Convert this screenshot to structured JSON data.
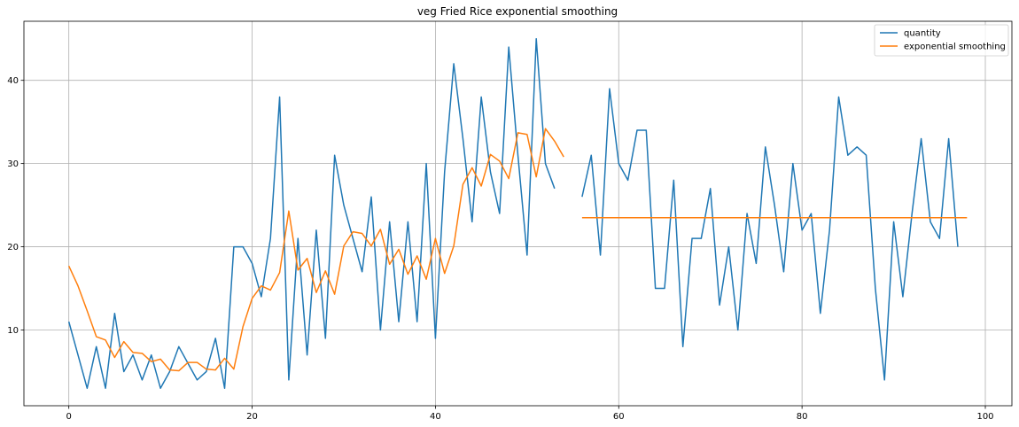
{
  "chart_data": {
    "type": "line",
    "title": "veg Fried Rice exponential smoothing",
    "xlabel": "",
    "ylabel": "",
    "xlim": [
      -4.9,
      102.9
    ],
    "ylim": [
      0.9,
      47.1
    ],
    "x_ticks": [
      0,
      20,
      40,
      60,
      80,
      100
    ],
    "y_ticks": [
      10,
      20,
      30,
      40
    ],
    "grid": true,
    "legend_position": "top-right",
    "series": [
      {
        "name": "quantity",
        "color": "#1f77b4",
        "x": [
          0,
          1,
          2,
          3,
          4,
          5,
          6,
          7,
          8,
          9,
          10,
          11,
          12,
          13,
          14,
          15,
          16,
          17,
          18,
          19,
          20,
          21,
          22,
          23,
          24,
          25,
          26,
          27,
          28,
          29,
          30,
          31,
          32,
          33,
          34,
          35,
          36,
          37,
          38,
          39,
          40,
          41,
          42,
          43,
          44,
          45,
          46,
          47,
          48,
          49,
          50,
          51,
          52,
          53,
          54,
          55,
          56,
          57,
          58,
          59,
          60,
          61,
          62,
          63,
          64,
          65,
          66,
          67,
          68,
          69,
          70,
          71,
          72,
          73,
          74,
          75,
          76,
          77,
          78,
          79,
          80,
          81,
          82,
          83,
          84,
          85,
          86,
          87,
          88,
          89,
          90,
          91,
          92,
          93,
          94,
          95,
          96,
          97
        ],
        "y": [
          11,
          7,
          3,
          8,
          3,
          12,
          5,
          7,
          4,
          7,
          3,
          5,
          8,
          6,
          4,
          5,
          9,
          3,
          20,
          20,
          18,
          14,
          21,
          38,
          4,
          21,
          7,
          22,
          9,
          31,
          25,
          21,
          17,
          26,
          10,
          23,
          11,
          23,
          11,
          30,
          9,
          29,
          42,
          33,
          23,
          38,
          29,
          24,
          44,
          31,
          19,
          45,
          30,
          27,
          null,
          null,
          26,
          31,
          19,
          39,
          30,
          28,
          34,
          34,
          15,
          15,
          28,
          8,
          21,
          21,
          27,
          13,
          20,
          10,
          24,
          18,
          32,
          25,
          17,
          30,
          22,
          24,
          12,
          22,
          38,
          31,
          32,
          31,
          15,
          4,
          23,
          14,
          24,
          33,
          23,
          21,
          33,
          20
        ]
      },
      {
        "name": "exponential smoothing",
        "color": "#ff7f0e",
        "x": [
          0,
          1,
          2,
          3,
          4,
          5,
          6,
          7,
          8,
          9,
          10,
          11,
          12,
          13,
          14,
          15,
          16,
          17,
          18,
          19,
          20,
          21,
          22,
          23,
          24,
          25,
          26,
          27,
          28,
          29,
          30,
          31,
          32,
          33,
          34,
          35,
          36,
          37,
          38,
          39,
          40,
          41,
          42,
          43,
          44,
          45,
          46,
          47,
          48,
          49,
          50,
          51,
          52,
          53,
          54,
          55,
          56,
          57,
          58,
          59,
          60,
          61,
          62,
          63,
          64,
          65,
          66,
          67,
          68,
          69,
          70,
          71,
          72,
          73,
          74,
          75,
          76,
          77,
          78,
          79,
          80,
          81,
          82,
          83,
          84,
          85,
          86,
          87,
          88,
          89,
          90,
          91,
          92,
          93,
          94,
          95,
          96,
          97,
          98
        ],
        "y": [
          17.7,
          15.3,
          12.3,
          9.2,
          8.8,
          6.7,
          8.6,
          7.3,
          7.2,
          6.2,
          6.5,
          5.2,
          5.1,
          6.1,
          6.1,
          5.3,
          5.2,
          6.6,
          5.3,
          10.4,
          13.8,
          15.3,
          14.8,
          16.9,
          24.3,
          17.2,
          18.6,
          14.5,
          17.1,
          14.3,
          20.1,
          21.8,
          21.6,
          20.1,
          22.1,
          17.9,
          19.7,
          16.7,
          18.9,
          16.1,
          21.0,
          16.8,
          20.1,
          27.5,
          29.5,
          27.3,
          31.1,
          30.3,
          28.2,
          33.7,
          33.5,
          28.4,
          34.2,
          32.7,
          30.8,
          null,
          23.5,
          23.5,
          23.5,
          23.5,
          23.5,
          23.5,
          23.5,
          23.5,
          23.5,
          23.5,
          23.5,
          23.5,
          23.5,
          23.5,
          23.5,
          23.5,
          23.5,
          23.5,
          23.5,
          23.5,
          23.5,
          23.5,
          23.5,
          23.5,
          23.5,
          23.5,
          23.5,
          23.5,
          23.5,
          23.5,
          23.5,
          23.5,
          23.5,
          23.5,
          23.5,
          23.5,
          23.5,
          23.5,
          23.5,
          23.5,
          23.5,
          23.5,
          23.5
        ]
      }
    ]
  }
}
